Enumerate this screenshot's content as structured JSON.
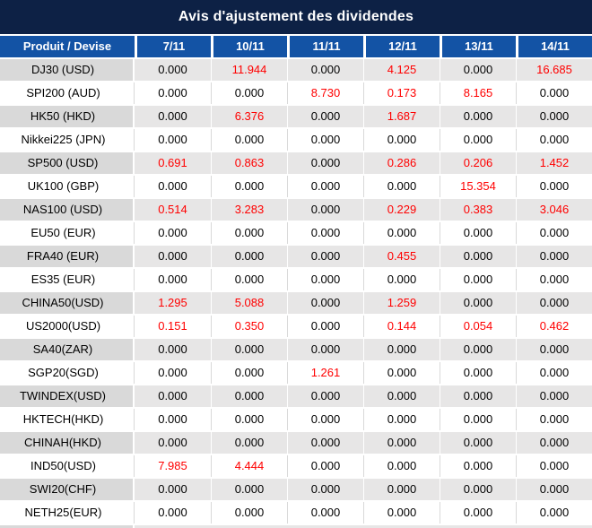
{
  "title": "Avis d'ajustement des dividendes",
  "table": {
    "header": {
      "product_label": "Produit / Devise",
      "dates": [
        "7/11",
        "10/11",
        "11/11",
        "12/11",
        "13/11",
        "14/11"
      ]
    },
    "rows": [
      {
        "product": "DJ30 (USD)",
        "values": [
          "0.000",
          "11.944",
          "0.000",
          "4.125",
          "0.000",
          "16.685"
        ]
      },
      {
        "product": "SPI200 (AUD)",
        "values": [
          "0.000",
          "0.000",
          "8.730",
          "0.173",
          "8.165",
          "0.000"
        ]
      },
      {
        "product": "HK50 (HKD)",
        "values": [
          "0.000",
          "6.376",
          "0.000",
          "1.687",
          "0.000",
          "0.000"
        ]
      },
      {
        "product": "Nikkei225 (JPN)",
        "values": [
          "0.000",
          "0.000",
          "0.000",
          "0.000",
          "0.000",
          "0.000"
        ]
      },
      {
        "product": "SP500 (USD)",
        "values": [
          "0.691",
          "0.863",
          "0.000",
          "0.286",
          "0.206",
          "1.452"
        ]
      },
      {
        "product": "UK100 (GBP)",
        "values": [
          "0.000",
          "0.000",
          "0.000",
          "0.000",
          "15.354",
          "0.000"
        ]
      },
      {
        "product": "NAS100 (USD)",
        "values": [
          "0.514",
          "3.283",
          "0.000",
          "0.229",
          "0.383",
          "3.046"
        ]
      },
      {
        "product": "EU50 (EUR)",
        "values": [
          "0.000",
          "0.000",
          "0.000",
          "0.000",
          "0.000",
          "0.000"
        ]
      },
      {
        "product": "FRA40 (EUR)",
        "values": [
          "0.000",
          "0.000",
          "0.000",
          "0.455",
          "0.000",
          "0.000"
        ]
      },
      {
        "product": "ES35 (EUR)",
        "values": [
          "0.000",
          "0.000",
          "0.000",
          "0.000",
          "0.000",
          "0.000"
        ]
      },
      {
        "product": "CHINA50(USD)",
        "values": [
          "1.295",
          "5.088",
          "0.000",
          "1.259",
          "0.000",
          "0.000"
        ]
      },
      {
        "product": "US2000(USD)",
        "values": [
          "0.151",
          "0.350",
          "0.000",
          "0.144",
          "0.054",
          "0.462"
        ]
      },
      {
        "product": "SA40(ZAR)",
        "values": [
          "0.000",
          "0.000",
          "0.000",
          "0.000",
          "0.000",
          "0.000"
        ]
      },
      {
        "product": "SGP20(SGD)",
        "values": [
          "0.000",
          "0.000",
          "1.261",
          "0.000",
          "0.000",
          "0.000"
        ]
      },
      {
        "product": "TWINDEX(USD)",
        "values": [
          "0.000",
          "0.000",
          "0.000",
          "0.000",
          "0.000",
          "0.000"
        ]
      },
      {
        "product": "HKTECH(HKD)",
        "values": [
          "0.000",
          "0.000",
          "0.000",
          "0.000",
          "0.000",
          "0.000"
        ]
      },
      {
        "product": "CHINAH(HKD)",
        "values": [
          "0.000",
          "0.000",
          "0.000",
          "0.000",
          "0.000",
          "0.000"
        ]
      },
      {
        "product": "IND50(USD)",
        "values": [
          "7.985",
          "4.444",
          "0.000",
          "0.000",
          "0.000",
          "0.000"
        ]
      },
      {
        "product": "SWI20(CHF)",
        "values": [
          "0.000",
          "0.000",
          "0.000",
          "0.000",
          "0.000",
          "0.000"
        ]
      },
      {
        "product": "NETH25(EUR)",
        "values": [
          "0.000",
          "0.000",
          "0.000",
          "0.000",
          "0.000",
          "0.000"
        ]
      }
    ]
  },
  "colors": {
    "title_bg": "#0D2145",
    "header_bg": "#1353A5",
    "header_text": "#FFFFFF",
    "stripe_product_bg": "#D9D9D9",
    "stripe_data_bg": "#E7E6E6",
    "white_row_bg": "#FFFFFF",
    "separator_light": "#D9D9D9",
    "zero_value_color": "#000000",
    "nonzero_value_color": "#FF0000"
  }
}
